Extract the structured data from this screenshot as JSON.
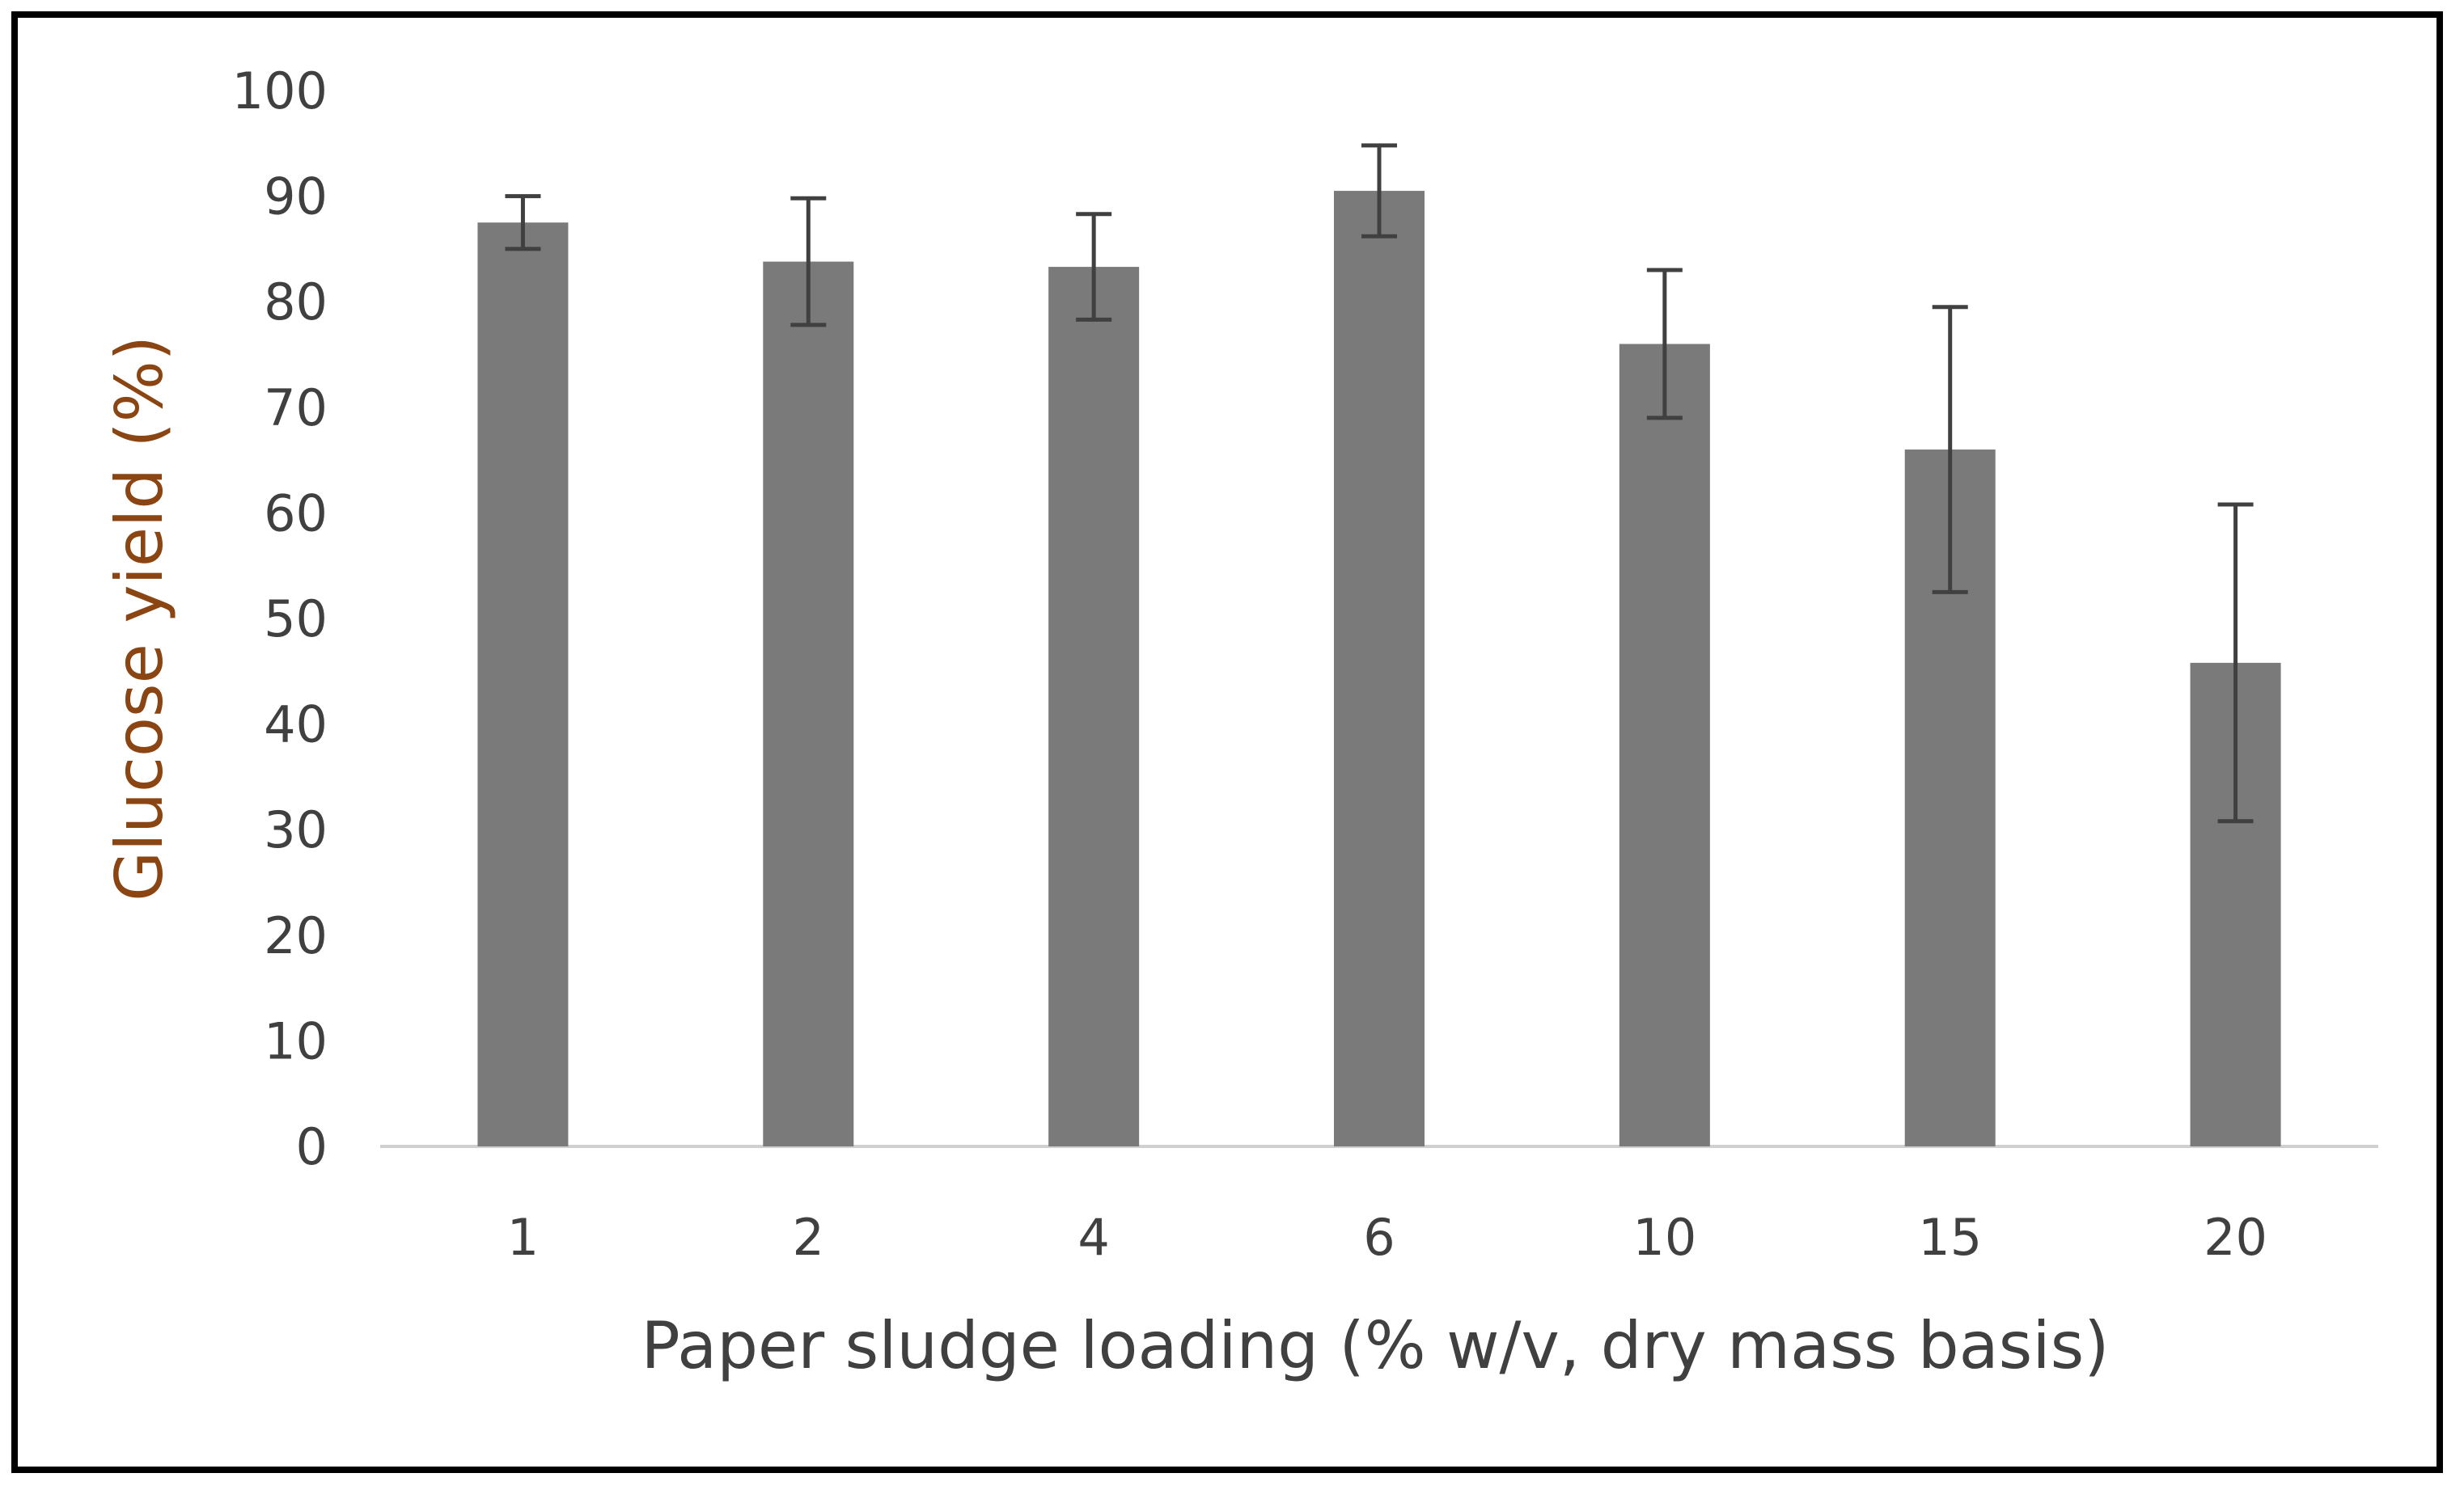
{
  "chart_data": {
    "type": "bar",
    "title": "",
    "xlabel": "Paper sludge loading (% w/v, dry mass basis)",
    "ylabel": "Glucose yield (%)",
    "ylim": [
      0,
      100
    ],
    "yticks": [
      "0",
      "10",
      "20",
      "30",
      "40",
      "50",
      "60",
      "70",
      "80",
      "90",
      "100"
    ],
    "categories": [
      "1",
      "2",
      "4",
      "6",
      "10",
      "15",
      "20"
    ],
    "series": [
      {
        "name": "Glucose yield",
        "values": [
          87.5,
          83.8,
          83.3,
          90.5,
          76,
          66,
          45.8
        ],
        "errors": [
          2.5,
          6,
          5,
          4.3,
          7,
          13.5,
          15
        ],
        "color": "#7a7a7a"
      }
    ],
    "grid": false,
    "legend": "none"
  }
}
